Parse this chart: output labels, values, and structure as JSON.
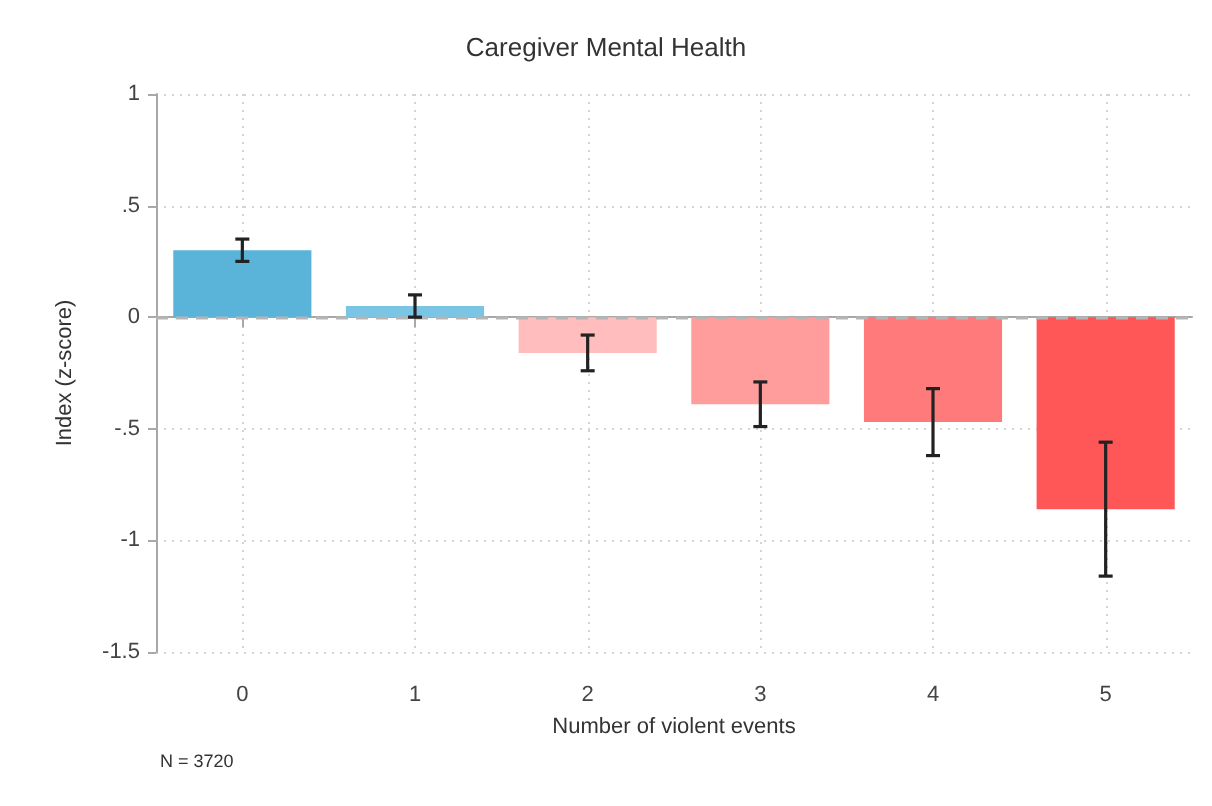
{
  "chart_data": {
    "type": "bar",
    "title": "Caregiver Mental Health",
    "xlabel": "Number of violent events",
    "ylabel": "Index (z-score)",
    "categories": [
      "0",
      "1",
      "2",
      "3",
      "4",
      "5"
    ],
    "values": [
      0.3,
      0.05,
      -0.16,
      -0.39,
      -0.47,
      -0.86
    ],
    "errors": [
      0.05,
      0.05,
      0.08,
      0.1,
      0.15,
      0.3
    ],
    "colors": [
      "#5ab3d8",
      "#79c5e3",
      "#ffbdbd",
      "#ff9d9d",
      "#ff7a7a",
      "#ff5757"
    ],
    "ylim": [
      -1.5,
      1
    ],
    "yticks": [
      -1.5,
      -1,
      {
        "value": -0.5,
        "label": "-.5"
      },
      0,
      {
        "value": 0.5,
        "label": ".5"
      },
      1
    ],
    "grid": true,
    "ref_lines": [
      {
        "axis": "y",
        "value": 0,
        "color": "#b5b5b5",
        "line_style": "dashed"
      }
    ],
    "annotations": [
      "N = 3720"
    ]
  }
}
